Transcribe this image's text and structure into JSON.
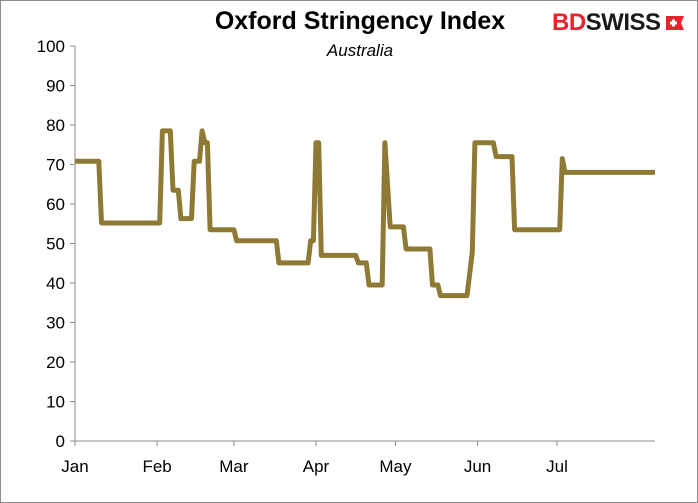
{
  "chart_data": {
    "type": "line",
    "title": "Oxford Stringency Index",
    "subtitle": "Australia",
    "xlabel": "",
    "ylabel": "",
    "ylim": [
      0,
      100
    ],
    "yticks": [
      0,
      10,
      20,
      30,
      40,
      50,
      60,
      70,
      80,
      90,
      100
    ],
    "xlim": [
      0,
      219
    ],
    "xticks": [
      {
        "label": "Jan",
        "day": 0
      },
      {
        "label": "Feb",
        "day": 31
      },
      {
        "label": "Mar",
        "day": 60
      },
      {
        "label": "Apr",
        "day": 91
      },
      {
        "label": "May",
        "day": 121
      },
      {
        "label": "Jun",
        "day": 152
      },
      {
        "label": "Jul",
        "day": 182
      }
    ],
    "grid": false,
    "legend": "none",
    "series": [
      {
        "color": "#8f7a35",
        "x": [
          0,
          9,
          10,
          32,
          33,
          36,
          37,
          39,
          40,
          44,
          45,
          47,
          48,
          49,
          50,
          51,
          52,
          60,
          61,
          76,
          77,
          88,
          89,
          90,
          91,
          92,
          93,
          106,
          107,
          110,
          111,
          116,
          117,
          119,
          120,
          124,
          125,
          128,
          129,
          134,
          135,
          137,
          138,
          141,
          142,
          148,
          150,
          151,
          152,
          158,
          159,
          165,
          166,
          183,
          184,
          185,
          219
        ],
        "y": [
          70.8,
          70.8,
          55.2,
          55.2,
          78.5,
          78.5,
          63.5,
          63.5,
          56.3,
          56.3,
          70.8,
          70.8,
          78.5,
          75.5,
          75.5,
          53.5,
          53.5,
          53.5,
          50.7,
          50.7,
          45.1,
          45.1,
          50.7,
          50.7,
          75.5,
          75.5,
          47.0,
          47.0,
          45.1,
          45.1,
          39.5,
          39.5,
          75.5,
          54.2,
          54.2,
          54.2,
          48.6,
          48.6,
          48.6,
          48.6,
          39.5,
          39.5,
          36.8,
          36.8,
          36.8,
          36.8,
          47.8,
          75.5,
          75.5,
          75.5,
          72.0,
          72.0,
          53.5,
          53.5,
          71.5,
          68.0,
          68.0
        ]
      }
    ]
  },
  "branding": {
    "logo_bd": "BD",
    "logo_swiss": "SWISS"
  }
}
